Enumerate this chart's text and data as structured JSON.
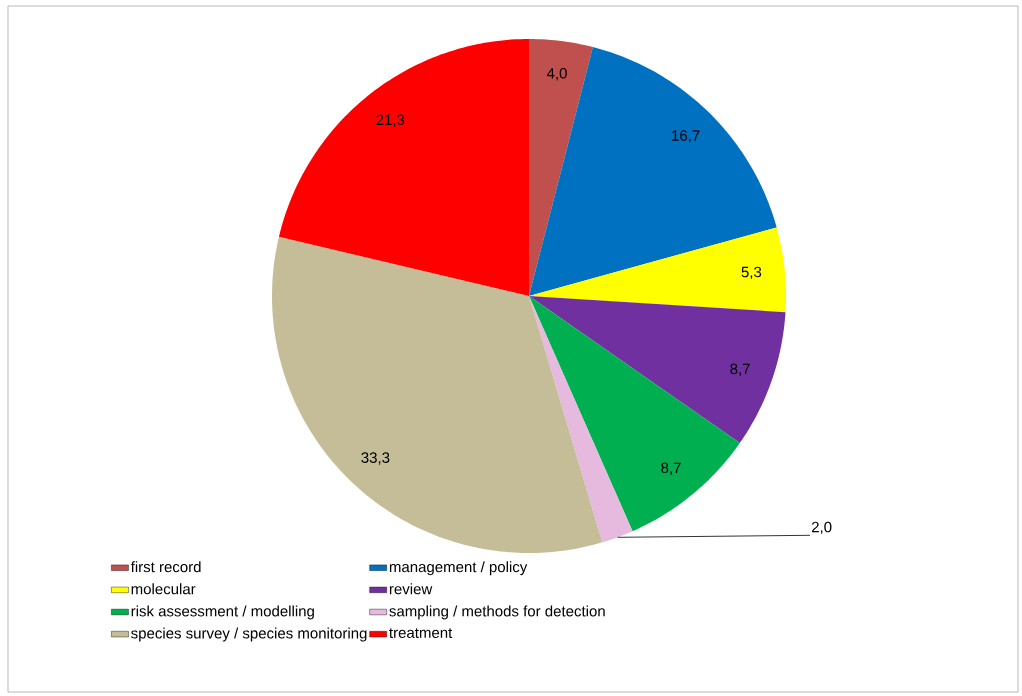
{
  "chart_data": {
    "type": "pie",
    "categories": [
      "first record",
      "management / policy",
      "molecular",
      "review",
      "risk assessment / modelling",
      "sampling / methods for detection",
      "species survey / species monitoring",
      "treatment"
    ],
    "values": [
      4.0,
      16.7,
      5.3,
      8.7,
      8.7,
      2.0,
      33.3,
      21.3
    ],
    "value_labels": [
      "4,0",
      "16,7",
      "5,3",
      "8,7",
      "8,7",
      "2,0",
      "33,3",
      "21,3"
    ],
    "colors": [
      "#c0504d",
      "#0070c0",
      "#ffff00",
      "#7030a0",
      "#00b050",
      "#e6b9de",
      "#c4bd97",
      "#ff0000"
    ],
    "legend": "bottom"
  }
}
